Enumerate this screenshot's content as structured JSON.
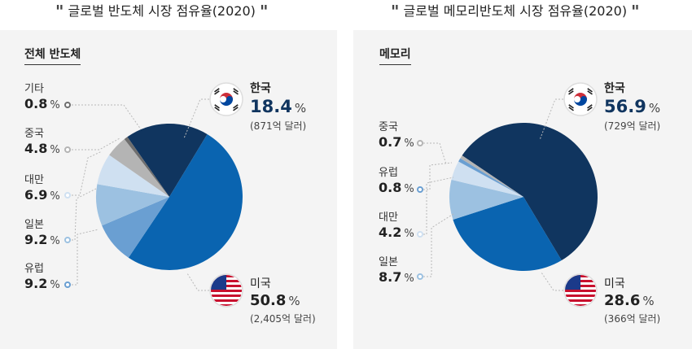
{
  "titles": {
    "left": "글로벌 반도체 시장 점유율(2020)",
    "right": "글로벌 메모리반도체 시장 점유율(2020)"
  },
  "quote_mark": "\"",
  "unit": "%",
  "chart_data": [
    {
      "type": "pie",
      "title": "전체 반도체",
      "slices": [
        {
          "name": "한국",
          "value": 18.4,
          "sub": "(871억 달러)",
          "color": "#10355f"
        },
        {
          "name": "미국",
          "value": 50.8,
          "sub": "(2,405억 달러)",
          "color": "#0a64b0"
        },
        {
          "name": "유럽",
          "value": 9.2,
          "color": "#6a9fd2"
        },
        {
          "name": "일본",
          "value": 9.2,
          "color": "#9cc1e1"
        },
        {
          "name": "대만",
          "value": 6.9,
          "color": "#cfe0f1"
        },
        {
          "name": "중국",
          "value": 4.8,
          "color": "#b4b4b4"
        },
        {
          "name": "기타",
          "value": 0.8,
          "color": "#6e6e6e"
        }
      ]
    },
    {
      "type": "pie",
      "title": "메모리",
      "slices": [
        {
          "name": "한국",
          "value": 56.9,
          "sub": "(729억 달러)",
          "color": "#10355f"
        },
        {
          "name": "미국",
          "value": 28.6,
          "sub": "(366억 달러)",
          "color": "#0a64b0"
        },
        {
          "name": "일본",
          "value": 8.7,
          "color": "#9cc1e1"
        },
        {
          "name": "대만",
          "value": 4.2,
          "color": "#cfe0f1"
        },
        {
          "name": "유럽",
          "value": 0.8,
          "color": "#6a9fd2"
        },
        {
          "name": "중국",
          "value": 0.7,
          "color": "#b4b4b4"
        }
      ]
    }
  ],
  "icons": {
    "korea": "korea-flag-icon",
    "usa": "usa-flag-icon"
  }
}
